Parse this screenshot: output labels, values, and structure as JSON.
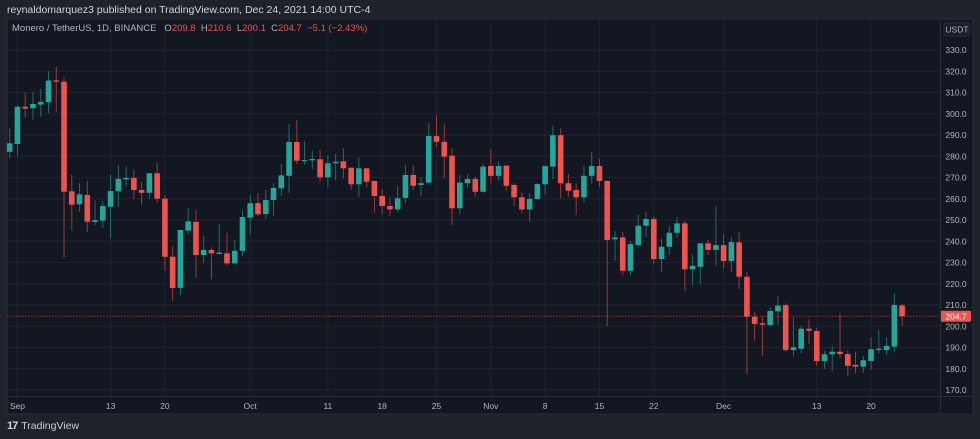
{
  "header": {
    "publish_line": "reynaldomarquez3 published on TradingView.com, Dec 24, 2021 14:00 UTC-4",
    "symbol": "Monero / TetherUS, 1D, BINANCE",
    "o_label": "O",
    "o_value": "209.8",
    "h_label": "H",
    "h_value": "210.6",
    "l_label": "L",
    "l_value": "200.1",
    "c_label": "C",
    "c_value": "204.7",
    "change": "−5.1 (−2.43%)"
  },
  "footer": {
    "brand": "TradingView",
    "logo_text": "17"
  },
  "colors": {
    "up": "#26a69a",
    "down": "#ef5350",
    "background": "#131722",
    "grid": "#1f2330",
    "last_price": "#ef5350"
  },
  "chart_data": {
    "type": "candlestick",
    "title": "",
    "currency_label": "USDT",
    "ylim": [
      170,
      330
    ],
    "grid": true,
    "last_price": 204.7,
    "last_price_label": "204.7",
    "y_ticks": [
      "170.0",
      "180.0",
      "190.0",
      "200.0",
      "210.0",
      "220.0",
      "230.0",
      "240.0",
      "250.0",
      "260.0",
      "270.0",
      "280.0",
      "290.0",
      "300.0",
      "310.0",
      "320.0",
      "330.0"
    ],
    "x_ticks": [
      {
        "label": "Sep",
        "date": "2021-09-01"
      },
      {
        "label": "13",
        "date": "2021-09-13"
      },
      {
        "label": "20",
        "date": "2021-09-20"
      },
      {
        "label": "Oct",
        "date": "2021-10-01"
      },
      {
        "label": "11",
        "date": "2021-10-11"
      },
      {
        "label": "18",
        "date": "2021-10-18"
      },
      {
        "label": "25",
        "date": "2021-10-25"
      },
      {
        "label": "Nov",
        "date": "2021-11-01"
      },
      {
        "label": "8",
        "date": "2021-11-08"
      },
      {
        "label": "15",
        "date": "2021-11-15"
      },
      {
        "label": "22",
        "date": "2021-11-22"
      },
      {
        "label": "Dec",
        "date": "2021-12-01"
      },
      {
        "label": "13",
        "date": "2021-12-13"
      },
      {
        "label": "20",
        "date": "2021-12-20"
      }
    ],
    "ohlc_columns": [
      "date",
      "open",
      "high",
      "low",
      "close"
    ],
    "candles": [
      [
        "2021-08-31",
        282.1,
        293.1,
        279.2,
        286.1
      ],
      [
        "2021-09-01",
        285.8,
        304.1,
        280.3,
        303.3
      ],
      [
        "2021-09-02",
        303.3,
        309.9,
        298.1,
        302.4
      ],
      [
        "2021-09-03",
        302.6,
        310.2,
        297.1,
        304.6
      ],
      [
        "2021-09-04",
        304.3,
        311.6,
        298.6,
        305.5
      ],
      [
        "2021-09-05",
        305.4,
        320.1,
        300.2,
        315.6
      ],
      [
        "2021-09-06",
        315.7,
        322.1,
        301.0,
        315.1
      ],
      [
        "2021-09-07",
        315.1,
        316.7,
        232.3,
        263.3
      ],
      [
        "2021-09-08",
        263.5,
        271.2,
        245.2,
        257.2
      ],
      [
        "2021-09-09",
        257.4,
        267.3,
        253.8,
        262.1
      ],
      [
        "2021-09-10",
        261.8,
        268.5,
        244.4,
        249.2
      ],
      [
        "2021-09-11",
        249.1,
        259.1,
        247.3,
        249.9
      ],
      [
        "2021-09-12",
        249.7,
        258.9,
        246.4,
        256.6
      ],
      [
        "2021-09-13",
        256.3,
        271.2,
        241.4,
        263.6
      ],
      [
        "2021-09-14",
        263.5,
        275.9,
        256.1,
        269.4
      ],
      [
        "2021-09-15",
        269.1,
        275.4,
        265.7,
        269.8
      ],
      [
        "2021-09-16",
        269.8,
        273.5,
        259.9,
        264.1
      ],
      [
        "2021-09-17",
        264.1,
        268.0,
        257.2,
        262.8
      ],
      [
        "2021-09-18",
        262.8,
        272.0,
        260.0,
        272.0
      ],
      [
        "2021-09-19",
        272.0,
        276.8,
        258.3,
        260.0
      ],
      [
        "2021-09-20",
        260.0,
        261.8,
        226.0,
        232.7
      ],
      [
        "2021-09-21",
        232.7,
        237.8,
        212.0,
        218.0
      ],
      [
        "2021-09-22",
        218.1,
        245.3,
        214.7,
        245.3
      ],
      [
        "2021-09-23",
        245.0,
        255.6,
        243.4,
        249.4
      ],
      [
        "2021-09-24",
        249.1,
        254.7,
        222.8,
        233.5
      ],
      [
        "2021-09-25",
        233.5,
        242.5,
        229.9,
        235.9
      ],
      [
        "2021-09-26",
        235.9,
        237.2,
        222.1,
        234.3
      ],
      [
        "2021-09-27",
        234.0,
        248.4,
        233.8,
        234.6
      ],
      [
        "2021-09-28",
        234.3,
        244.0,
        228.5,
        229.6
      ],
      [
        "2021-09-29",
        229.6,
        240.6,
        229.0,
        235.5
      ],
      [
        "2021-09-30",
        235.5,
        254.6,
        233.0,
        251.4
      ],
      [
        "2021-10-01",
        251.1,
        261.8,
        243.4,
        257.9
      ],
      [
        "2021-10-02",
        257.9,
        262.6,
        251.6,
        252.7
      ],
      [
        "2021-10-03",
        252.8,
        264.1,
        250.5,
        259.4
      ],
      [
        "2021-10-04",
        259.4,
        267.3,
        251.6,
        265.1
      ],
      [
        "2021-10-05",
        264.9,
        276.2,
        261.4,
        271.0
      ],
      [
        "2021-10-06",
        270.8,
        295.2,
        262.8,
        286.7
      ],
      [
        "2021-10-07",
        286.7,
        297.1,
        276.2,
        277.9
      ],
      [
        "2021-10-08",
        277.8,
        287.0,
        276.0,
        278.2
      ],
      [
        "2021-10-09",
        278.1,
        282.6,
        273.9,
        278.7
      ],
      [
        "2021-10-10",
        278.6,
        282.9,
        268.0,
        270.1
      ],
      [
        "2021-10-11",
        270.1,
        280.4,
        265.4,
        276.7
      ],
      [
        "2021-10-12",
        276.7,
        281.1,
        268.7,
        277.4
      ],
      [
        "2021-10-13",
        277.6,
        283.7,
        269.6,
        274.3
      ],
      [
        "2021-10-14",
        274.6,
        274.6,
        264.3,
        266.8
      ],
      [
        "2021-10-15",
        266.8,
        279.3,
        261.0,
        274.3
      ],
      [
        "2021-10-16",
        274.3,
        274.6,
        265.4,
        268.0
      ],
      [
        "2021-10-17",
        268.4,
        268.4,
        253.4,
        261.3
      ],
      [
        "2021-10-18",
        261.3,
        264.6,
        252.7,
        256.6
      ],
      [
        "2021-10-19",
        256.6,
        260.7,
        251.6,
        255.0
      ],
      [
        "2021-10-20",
        255.0,
        266.0,
        253.6,
        260.2
      ],
      [
        "2021-10-21",
        260.4,
        275.9,
        257.9,
        271.2
      ],
      [
        "2021-10-22",
        271.2,
        275.6,
        264.1,
        266.1
      ],
      [
        "2021-10-23",
        266.5,
        269.9,
        261.3,
        267.3
      ],
      [
        "2021-10-24",
        267.6,
        295.8,
        266.5,
        289.5
      ],
      [
        "2021-10-25",
        289.5,
        299.4,
        284.5,
        286.8
      ],
      [
        "2021-10-26",
        286.8,
        295.5,
        269.6,
        279.8
      ],
      [
        "2021-10-27",
        280.3,
        283.7,
        247.6,
        255.5
      ],
      [
        "2021-10-28",
        255.5,
        271.2,
        252.8,
        267.6
      ],
      [
        "2021-10-29",
        267.3,
        271.6,
        265.2,
        269.3
      ],
      [
        "2021-10-30",
        269.3,
        270.4,
        261.0,
        263.3
      ],
      [
        "2021-10-31",
        263.3,
        276.7,
        262.8,
        275.1
      ],
      [
        "2021-11-01",
        275.4,
        283.3,
        267.3,
        270.8
      ],
      [
        "2021-11-02",
        270.8,
        277.6,
        268.5,
        275.4
      ],
      [
        "2021-11-03",
        275.6,
        275.6,
        263.8,
        266.1
      ],
      [
        "2021-11-04",
        266.5,
        267.3,
        256.3,
        260.7
      ],
      [
        "2021-11-05",
        260.7,
        263.0,
        253.4,
        255.0
      ],
      [
        "2021-11-06",
        255.0,
        262.6,
        249.2,
        259.9
      ],
      [
        "2021-11-07",
        259.9,
        267.3,
        259.4,
        266.9
      ],
      [
        "2021-11-08",
        266.8,
        275.4,
        261.8,
        275.4
      ],
      [
        "2021-11-09",
        275.1,
        294.4,
        269.1,
        289.9
      ],
      [
        "2021-11-10",
        289.9,
        293.1,
        260.2,
        267.3
      ],
      [
        "2021-11-11",
        267.3,
        271.6,
        261.0,
        263.8
      ],
      [
        "2021-11-12",
        264.1,
        267.3,
        252.4,
        260.7
      ],
      [
        "2021-11-13",
        260.7,
        275.6,
        258.3,
        270.8
      ],
      [
        "2021-11-14",
        270.8,
        282.1,
        267.3,
        275.4
      ],
      [
        "2021-11-15",
        275.4,
        279.0,
        265.7,
        268.4
      ],
      [
        "2021-11-16",
        268.4,
        268.4,
        200.1,
        240.6
      ],
      [
        "2021-11-17",
        240.9,
        244.8,
        230.8,
        241.8
      ],
      [
        "2021-11-18",
        241.8,
        244.5,
        224.1,
        226.1
      ],
      [
        "2021-11-19",
        226.1,
        240.2,
        224.1,
        238.6
      ],
      [
        "2021-11-20",
        238.2,
        252.4,
        237.4,
        247.3
      ],
      [
        "2021-11-21",
        247.3,
        253.9,
        242.1,
        250.5
      ],
      [
        "2021-11-22",
        250.5,
        251.6,
        229.2,
        231.6
      ],
      [
        "2021-11-23",
        231.6,
        241.4,
        225.7,
        237.4
      ],
      [
        "2021-11-24",
        237.4,
        247.1,
        233.5,
        244.0
      ],
      [
        "2021-11-25",
        244.0,
        251.3,
        241.7,
        248.4
      ],
      [
        "2021-11-26",
        248.4,
        249.7,
        216.7,
        226.8
      ],
      [
        "2021-11-27",
        226.8,
        234.0,
        219.1,
        228.4
      ],
      [
        "2021-11-28",
        228.0,
        239.0,
        219.9,
        239.0
      ],
      [
        "2021-11-29",
        239.0,
        240.6,
        233.5,
        235.9
      ],
      [
        "2021-11-30",
        235.9,
        256.6,
        228.4,
        238.2
      ],
      [
        "2021-12-01",
        238.2,
        243.3,
        227.3,
        230.7
      ],
      [
        "2021-12-02",
        230.7,
        241.9,
        225.7,
        239.6
      ],
      [
        "2021-12-03",
        239.5,
        244.2,
        217.6,
        223.3
      ],
      [
        "2021-12-04",
        223.3,
        225.7,
        177.5,
        204.5
      ],
      [
        "2021-12-05",
        204.5,
        206.8,
        193.2,
        201.1
      ],
      [
        "2021-12-06",
        201.4,
        204.5,
        186.0,
        200.7
      ],
      [
        "2021-12-07",
        200.6,
        208.9,
        199.5,
        207.2
      ],
      [
        "2021-12-08",
        207.0,
        214.2,
        200.6,
        209.7
      ],
      [
        "2021-12-09",
        209.9,
        210.8,
        188.0,
        188.8
      ],
      [
        "2021-12-10",
        188.8,
        204.2,
        185.7,
        190.1
      ],
      [
        "2021-12-11",
        189.4,
        200.1,
        187.2,
        198.8
      ],
      [
        "2021-12-12",
        198.8,
        203.3,
        191.6,
        197.9
      ],
      [
        "2021-12-13",
        197.8,
        199.0,
        181.4,
        183.6
      ],
      [
        "2021-12-14",
        183.6,
        188.4,
        179.9,
        186.8
      ],
      [
        "2021-12-15",
        186.8,
        190.8,
        179.1,
        188.0
      ],
      [
        "2021-12-16",
        188.0,
        206.1,
        184.9,
        186.9
      ],
      [
        "2021-12-17",
        186.9,
        188.8,
        176.7,
        181.4
      ],
      [
        "2021-12-18",
        181.8,
        188.0,
        177.8,
        181.0
      ],
      [
        "2021-12-19",
        181.0,
        186.0,
        178.1,
        184.0
      ],
      [
        "2021-12-20",
        183.6,
        194.8,
        179.4,
        189.2
      ],
      [
        "2021-12-21",
        188.8,
        198.2,
        187.3,
        189.4
      ],
      [
        "2021-12-22",
        188.8,
        194.8,
        186.5,
        190.7
      ],
      [
        "2021-12-23",
        190.4,
        215.5,
        187.6,
        210.0
      ],
      [
        "2021-12-24",
        209.8,
        210.6,
        200.1,
        204.7
      ]
    ]
  }
}
